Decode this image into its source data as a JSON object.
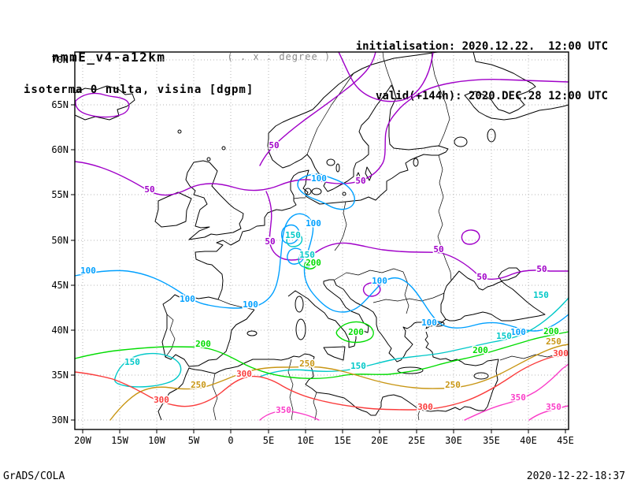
{
  "header": {
    "model": "nmmE_v4-a12km",
    "degree_note": "( . x . degree )",
    "subtitle": "isoterma 0 nulta, visina [dgpm]",
    "init_line": "initialisation: 2020.12.22.  12:00 UTC",
    "valid_line": "valid(+144h): 2020.DEC.28 12:00 UTC"
  },
  "footer": {
    "left": "GrADS/COLA",
    "right": "2020-12-22-18:37"
  },
  "axes": {
    "x_ticks": [
      "20W",
      "15W",
      "10W",
      "5W",
      "0",
      "5E",
      "10E",
      "15E",
      "20E",
      "25E",
      "30E",
      "35E",
      "40E",
      "45E"
    ],
    "y_ticks": [
      "30N",
      "35N",
      "40N",
      "45N",
      "50N",
      "55N",
      "60N",
      "65N",
      "70N"
    ]
  },
  "chart_data": {
    "type": "contour-map",
    "title": "isoterma 0 nulta, visina [dgpm]",
    "model_run": "nmmE_v4-a12km",
    "region": {
      "lon": [
        "20W",
        "45E"
      ],
      "lat": [
        "30N",
        "70N"
      ]
    },
    "contour_interval": 50,
    "contour_levels": [
      {
        "value": "50",
        "color": "#a000c8"
      },
      {
        "value": "100",
        "color": "#00a0ff"
      },
      {
        "value": "150",
        "color": "#00c8c8"
      },
      {
        "value": "200",
        "color": "#00dc00"
      },
      {
        "value": "250",
        "color": "#c89614"
      },
      {
        "value": "300",
        "color": "#fa3c3c"
      },
      {
        "value": "350",
        "color": "#fa3cc8"
      }
    ]
  }
}
